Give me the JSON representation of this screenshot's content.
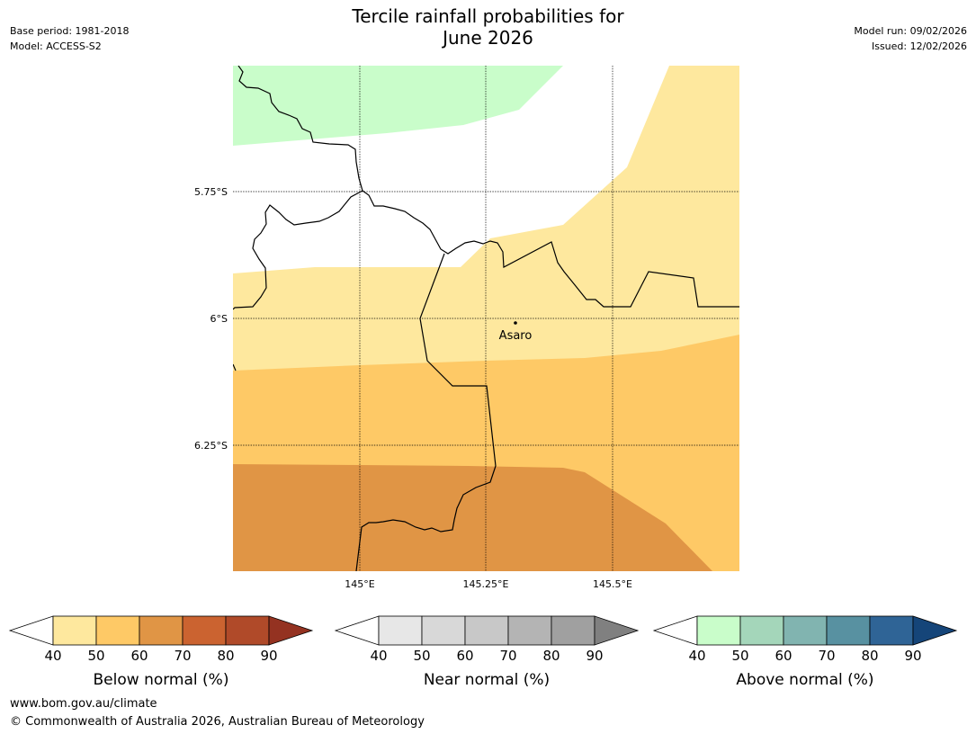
{
  "title_line1": "Tercile rainfall probabilities for",
  "title_line2": "June 2026",
  "base_period": "Base period: 1981-2018",
  "model": "Model: ACCESS-S2",
  "model_run": "Model run: 09/02/2026",
  "issued": "Issued: 12/02/2026",
  "map": {
    "lat_labels": [
      "5.75°S",
      "6°S",
      "6.25°S"
    ],
    "lon_labels": [
      "145°E",
      "145.25°E",
      "145.5°E"
    ],
    "place_label": "Asaro"
  },
  "colorbars": [
    {
      "label": "Below normal (%)",
      "ticks": [
        "40",
        "50",
        "60",
        "70",
        "80",
        "90"
      ],
      "colors": [
        "#ffffff",
        "#fee89e",
        "#fec966",
        "#e09545",
        "#cb6330",
        "#b04a29",
        "#943221"
      ]
    },
    {
      "label": "Near normal (%)",
      "ticks": [
        "40",
        "50",
        "60",
        "70",
        "80",
        "90"
      ],
      "colors": [
        "#ffffff",
        "#e7e7e7",
        "#d8d8d8",
        "#c8c8c8",
        "#b4b4b4",
        "#a0a0a0",
        "#808080"
      ]
    },
    {
      "label": "Above normal (%)",
      "ticks": [
        "40",
        "50",
        "60",
        "70",
        "80",
        "90"
      ],
      "colors": [
        "#ffffff",
        "#c9fdca",
        "#a4d6ba",
        "#81b4b0",
        "#5891a1",
        "#2f6496",
        "#154579"
      ]
    }
  ],
  "footer_url": "www.bom.gov.au/climate",
  "footer_copyright": "© Commonwealth of Australia 2026, Australian Bureau of Meteorology"
}
